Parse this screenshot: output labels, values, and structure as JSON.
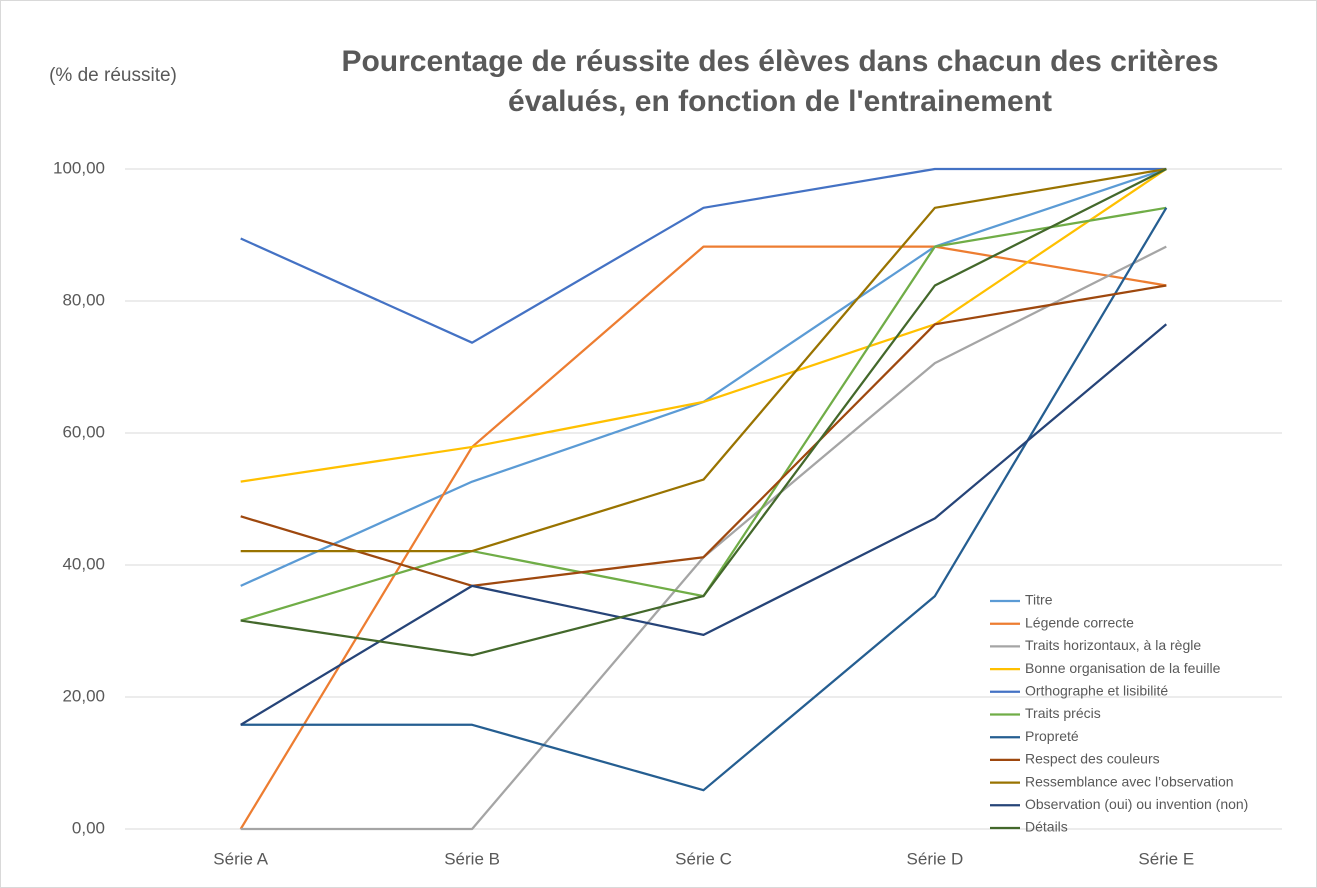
{
  "chart_data": {
    "type": "line",
    "title": "Pourcentage de réussite des élèves dans chacun des critères évalués, en fonction de l'entrainement",
    "y_label": "(% de réussite)",
    "categories": [
      "Série A",
      "Série B",
      "Série C",
      "Série D",
      "Série E"
    ],
    "ylim": [
      0,
      100
    ],
    "yticks": [
      {
        "value": 0,
        "label": "0,00"
      },
      {
        "value": 20,
        "label": "20,00"
      },
      {
        "value": 40,
        "label": "40,00"
      },
      {
        "value": 60,
        "label": "60,00"
      },
      {
        "value": 80,
        "label": "80,00"
      },
      {
        "value": 100,
        "label": "100,00"
      }
    ],
    "grid": true,
    "legend": "lower right",
    "series": [
      {
        "name": "Titre",
        "color": "#5b9bd5",
        "values": [
          36.84,
          52.63,
          64.71,
          88.24,
          100
        ]
      },
      {
        "name": "Légende correcte",
        "color": "#ed7d31",
        "values": [
          0,
          57.89,
          88.24,
          88.24,
          82.35
        ]
      },
      {
        "name": "Traits horizontaux, à la règle",
        "color": "#a5a5a5",
        "values": [
          0,
          0,
          41.18,
          70.59,
          88.24
        ]
      },
      {
        "name": "Bonne organisation de la feuille",
        "color": "#ffc000",
        "values": [
          52.63,
          57.89,
          64.71,
          76.47,
          100
        ]
      },
      {
        "name": "Orthographe et lisibilité",
        "color": "#4472c4",
        "values": [
          89.47,
          73.68,
          94.12,
          100,
          100
        ]
      },
      {
        "name": "Traits précis",
        "color": "#70ad47",
        "values": [
          31.58,
          42.11,
          35.29,
          88.24,
          94.12
        ]
      },
      {
        "name": "Propreté",
        "color": "#255e91",
        "values": [
          15.79,
          15.79,
          5.88,
          35.29,
          94.12
        ]
      },
      {
        "name": "Respect des couleurs",
        "color": "#9e480e",
        "values": [
          47.37,
          36.84,
          41.18,
          76.47,
          82.35
        ]
      },
      {
        "name": "Ressemblance avec l’observation",
        "color": "#997300",
        "values": [
          42.11,
          42.11,
          52.94,
          94.12,
          100
        ]
      },
      {
        "name": "Observation (oui) ou invention (non)",
        "color": "#264478",
        "values": [
          15.79,
          36.84,
          29.41,
          47.06,
          76.47
        ]
      },
      {
        "name": "Détails",
        "color": "#43682b",
        "values": [
          31.58,
          26.32,
          35.29,
          82.35,
          100
        ]
      }
    ]
  }
}
